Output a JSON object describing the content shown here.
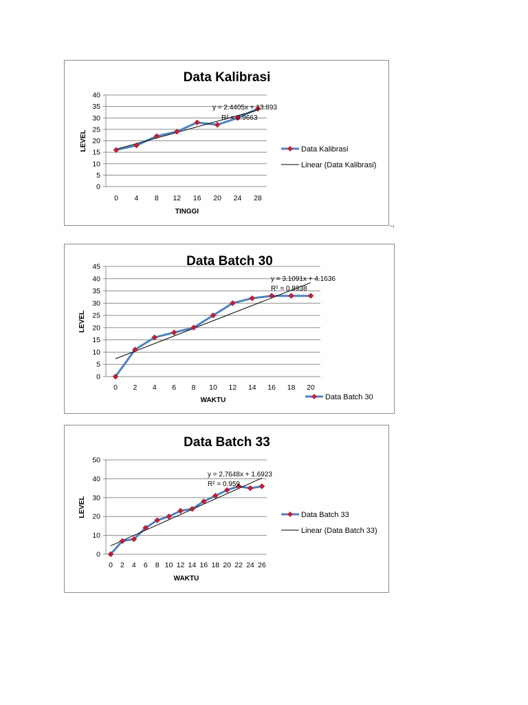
{
  "chart_data": [
    {
      "type": "line",
      "title": "Data Kalibrasi",
      "xlabel": "TINGGI",
      "ylabel": "LEVEL",
      "xticks": [
        0,
        4,
        8,
        12,
        16,
        20,
        24,
        28
      ],
      "yticks": [
        0,
        5,
        10,
        15,
        20,
        25,
        30,
        35,
        40
      ],
      "ylim": [
        0,
        40
      ],
      "grid": true,
      "legend": "right",
      "series": [
        {
          "name": "Data Kalibrasi",
          "color": "#4f81bd",
          "marker_color": "#c0203b",
          "x": [
            0,
            4,
            8,
            12,
            16,
            20,
            24,
            28
          ],
          "y": [
            16,
            18,
            22,
            24,
            28,
            27,
            30,
            34
          ]
        }
      ],
      "trendline": {
        "name": "Linear (Data Kalibrasi)",
        "equation": "y = 2.4405x + 13.893",
        "r2": "R² = 0.9663"
      }
    },
    {
      "type": "line",
      "title": "Data Batch 30",
      "xlabel": "WAKTU",
      "ylabel": "LEVEL",
      "xticks": [
        0,
        2,
        4,
        6,
        8,
        10,
        12,
        14,
        16,
        18,
        20
      ],
      "yticks": [
        0,
        5,
        10,
        15,
        20,
        25,
        30,
        35,
        40,
        45
      ],
      "ylim": [
        0,
        45
      ],
      "grid": true,
      "legend": "bottom-right",
      "series": [
        {
          "name": "Data Batch 30",
          "color": "#4f81bd",
          "marker_color": "#c0203b",
          "x": [
            0,
            2,
            4,
            6,
            8,
            10,
            12,
            14,
            16,
            18,
            20
          ],
          "y": [
            0,
            11,
            16,
            18,
            20,
            25,
            30,
            32,
            33,
            33,
            33
          ]
        }
      ],
      "trendline": {
        "name": "",
        "equation": "y = 3.1091x + 4.1636",
        "r2": "R² = 0.8938"
      }
    },
    {
      "type": "line",
      "title": "Data Batch 33",
      "xlabel": "WAKTU",
      "ylabel": "LEVEL",
      "xticks": [
        0,
        2,
        4,
        6,
        8,
        10,
        12,
        14,
        16,
        18,
        20,
        22,
        24,
        26
      ],
      "yticks": [
        0,
        10,
        20,
        30,
        40,
        50
      ],
      "ylim": [
        0,
        50
      ],
      "grid": true,
      "legend": "right",
      "series": [
        {
          "name": "Data Batch 33",
          "color": "#4f81bd",
          "marker_color": "#c0203b",
          "x": [
            0,
            2,
            4,
            6,
            8,
            10,
            12,
            14,
            16,
            18,
            20,
            22,
            24,
            26
          ],
          "y": [
            0,
            7,
            8,
            14,
            18,
            20,
            23,
            24,
            28,
            31,
            34,
            36,
            35,
            36
          ]
        }
      ],
      "trendline": {
        "name": "Linear (Data Batch 33)",
        "equation": "y = 2.7648x + 1.6923",
        "r2": "R² = 0.959"
      }
    }
  ],
  "stray_mark": ".,"
}
